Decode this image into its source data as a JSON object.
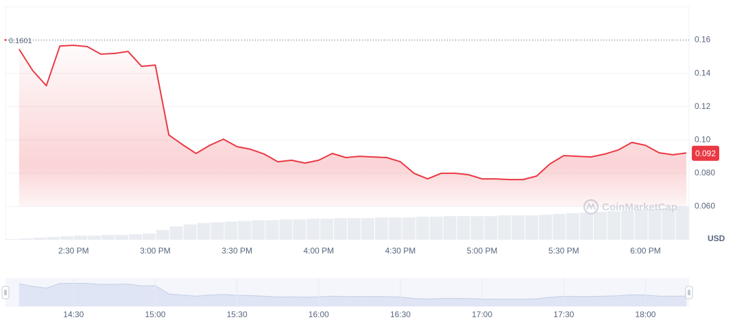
{
  "chart_data": {
    "type": "line",
    "x": [
      "2:10 PM",
      "2:15 PM",
      "2:20 PM",
      "2:25 PM",
      "2:30 PM",
      "2:35 PM",
      "2:40 PM",
      "2:45 PM",
      "2:50 PM",
      "2:55 PM",
      "3:00 PM",
      "3:05 PM",
      "3:10 PM",
      "3:15 PM",
      "3:20 PM",
      "3:25 PM",
      "3:30 PM",
      "3:35 PM",
      "3:40 PM",
      "3:45 PM",
      "3:50 PM",
      "3:55 PM",
      "4:00 PM",
      "4:05 PM",
      "4:10 PM",
      "4:15 PM",
      "4:20 PM",
      "4:25 PM",
      "4:30 PM",
      "4:35 PM",
      "4:40 PM",
      "4:45 PM",
      "4:50 PM",
      "4:55 PM",
      "5:00 PM",
      "5:05 PM",
      "5:10 PM",
      "5:15 PM",
      "5:20 PM",
      "5:25 PM",
      "5:30 PM",
      "5:35 PM",
      "5:40 PM",
      "5:45 PM",
      "5:50 PM",
      "5:55 PM",
      "6:00 PM",
      "6:05 PM",
      "6:10 PM",
      "6:15 PM"
    ],
    "values": [
      0.1545,
      0.1417,
      0.1326,
      0.1565,
      0.1569,
      0.1561,
      0.1516,
      0.152,
      0.1532,
      0.1442,
      0.145,
      0.103,
      0.0972,
      0.0919,
      0.0968,
      0.1005,
      0.096,
      0.0944,
      0.0915,
      0.0869,
      0.0878,
      0.0861,
      0.0878,
      0.0919,
      0.0894,
      0.0902,
      0.0898,
      0.0894,
      0.0869,
      0.08,
      0.0766,
      0.08,
      0.08,
      0.0791,
      0.0766,
      0.0766,
      0.0762,
      0.0762,
      0.0783,
      0.0857,
      0.0906,
      0.0902,
      0.0898,
      0.0915,
      0.094,
      0.0985,
      0.0968,
      0.0923,
      0.0911,
      0.0922
    ],
    "color": "#ea3943",
    "xlim": [
      "2:05 PM",
      "6:16 PM"
    ],
    "xticks": [
      "2:30 PM",
      "3:00 PM",
      "3:30 PM",
      "4:00 PM",
      "4:30 PM",
      "5:00 PM",
      "5:30 PM",
      "6:00 PM"
    ],
    "ylim": [
      0.04,
      0.18
    ],
    "yticks": [
      0.16,
      0.14,
      0.12,
      {
        "value": 0.1,
        "label": "0.10"
      },
      {
        "value": 0.08,
        "label": "0.080"
      },
      {
        "value": 0.06,
        "label": "0.060"
      }
    ],
    "grid": true,
    "y_unit": "USD",
    "open_price": 0.1601,
    "current_price": 0.092,
    "watermark": "CoinMarketCap",
    "volume": {
      "values": [
        0.3,
        0.6,
        0.9,
        1.2,
        1.5,
        1.8,
        1.8,
        2.1,
        2.1,
        2.4,
        2.7,
        4.2,
        5.7,
        6.6,
        7.2,
        7.5,
        7.8,
        8.1,
        8.4,
        8.4,
        8.7,
        8.7,
        9,
        9,
        9.3,
        9.3,
        9.3,
        9.6,
        9.6,
        9.6,
        9.9,
        9.9,
        10.2,
        10.2,
        10.2,
        10.2,
        10.5,
        10.5,
        10.5,
        10.8,
        11.1,
        11.4,
        11.7,
        12,
        12.3,
        12.6,
        12.9,
        13.2,
        13.5,
        14.4
      ],
      "y2lim": [
        0,
        100
      ],
      "color": "#e9ecf1"
    },
    "navigator": {
      "xticks": [
        "14:30",
        "15:00",
        "15:30",
        "16:00",
        "16:30",
        "17:00",
        "17:30",
        "18:00"
      ]
    }
  }
}
